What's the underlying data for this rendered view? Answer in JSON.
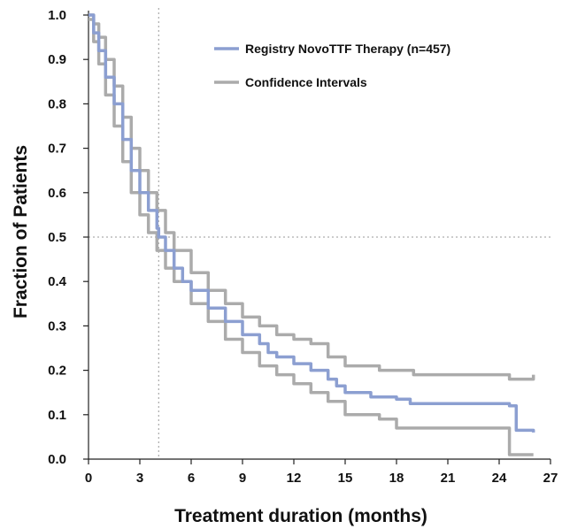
{
  "chart_data": {
    "type": "line",
    "title": "",
    "xlabel": "Treatment duration (months)",
    "ylabel": "Fraction of Patients",
    "xlim": [
      0,
      27
    ],
    "ylim": [
      0,
      1.0
    ],
    "x_ticks": [
      "0",
      "3",
      "6",
      "9",
      "12",
      "15",
      "18",
      "21",
      "24",
      "27"
    ],
    "y_ticks": [
      "0.0",
      "0.1",
      "0.2",
      "0.3",
      "0.4",
      "0.5",
      "0.6",
      "0.7",
      "0.8",
      "0.9",
      "1.0"
    ],
    "reference_lines": {
      "x": 4.1,
      "y": 0.5
    },
    "legend_position": "top-right",
    "colors": {
      "main": "#8c9fd1",
      "ci": "#ababab",
      "reference": "#999999",
      "axis": "#222222"
    },
    "series": [
      {
        "name": "Registry NovoTTF Therapy (n=457)",
        "x": [
          0,
          0.3,
          0.6,
          1.0,
          1.5,
          2.0,
          2.5,
          3.0,
          3.5,
          4.0,
          4.1,
          4.5,
          5.0,
          5.5,
          6.0,
          7.0,
          8.0,
          9.0,
          10.0,
          10.5,
          11.0,
          12.0,
          13.0,
          14.0,
          14.5,
          15.0,
          16.0,
          16.5,
          17.0,
          18.0,
          18.8,
          19.0,
          21.0,
          23.0,
          24.6,
          25.0,
          26.0
        ],
        "y": [
          1.0,
          0.96,
          0.92,
          0.86,
          0.8,
          0.72,
          0.65,
          0.6,
          0.56,
          0.52,
          0.5,
          0.47,
          0.43,
          0.4,
          0.38,
          0.34,
          0.31,
          0.28,
          0.26,
          0.24,
          0.23,
          0.215,
          0.2,
          0.18,
          0.165,
          0.15,
          0.15,
          0.14,
          0.14,
          0.135,
          0.125,
          0.125,
          0.125,
          0.125,
          0.12,
          0.065,
          0.06
        ]
      },
      {
        "name": "Confidence Intervals",
        "x": [
          0,
          0.3,
          0.6,
          1.0,
          1.5,
          2.0,
          2.5,
          3.0,
          3.5,
          4.0,
          4.5,
          5.0,
          6.0,
          7.0,
          8.0,
          9.0,
          10.0,
          11.0,
          12.0,
          13.0,
          14.0,
          15.0,
          16.0,
          17.0,
          18.0,
          19.0,
          21.0,
          23.0,
          24.6,
          26.0
        ],
        "y": [
          1.0,
          0.98,
          0.95,
          0.9,
          0.84,
          0.77,
          0.7,
          0.65,
          0.6,
          0.56,
          0.51,
          0.47,
          0.42,
          0.38,
          0.35,
          0.32,
          0.3,
          0.28,
          0.27,
          0.26,
          0.23,
          0.21,
          0.21,
          0.2,
          0.2,
          0.19,
          0.19,
          0.19,
          0.18,
          0.19
        ]
      },
      {
        "name": "",
        "x": [
          0,
          0.3,
          0.6,
          1.0,
          1.5,
          2.0,
          2.5,
          3.0,
          3.5,
          4.0,
          4.5,
          5.0,
          6.0,
          7.0,
          8.0,
          9.0,
          10.0,
          11.0,
          12.0,
          13.0,
          14.0,
          15.0,
          16.0,
          17.0,
          18.0,
          19.0,
          21.0,
          23.0,
          24.6,
          24.6,
          26.0
        ],
        "y": [
          0.99,
          0.94,
          0.89,
          0.82,
          0.75,
          0.67,
          0.6,
          0.55,
          0.51,
          0.47,
          0.43,
          0.4,
          0.35,
          0.31,
          0.27,
          0.24,
          0.21,
          0.19,
          0.17,
          0.15,
          0.13,
          0.1,
          0.1,
          0.09,
          0.07,
          0.07,
          0.07,
          0.07,
          0.06,
          0.01,
          0.01
        ]
      }
    ]
  }
}
